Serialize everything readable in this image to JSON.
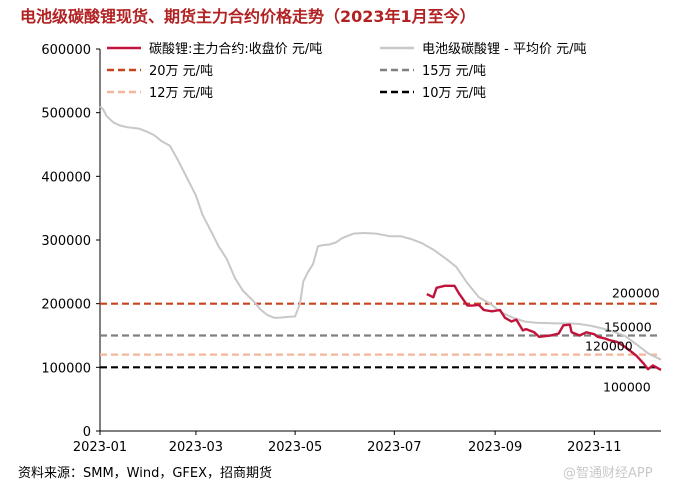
{
  "title": "电池级碳酸锂现货、期货主力合约价格走势（2023年1月至今）",
  "source": "资料来源：SMM，Wind，GFEX，招商期货",
  "watermark": "@智通财经APP",
  "chart_data": {
    "type": "line",
    "title": "电池级碳酸锂现货、期货主力合约价格走势（2023年1月至今）",
    "xlabel": "",
    "ylabel": "",
    "xlim": [
      "2023-01-01",
      "2023-12-12"
    ],
    "ylim": [
      0,
      600000
    ],
    "yticks": [
      0,
      100000,
      200000,
      300000,
      400000,
      500000,
      600000
    ],
    "xticks": [
      "2023-01",
      "2023-03",
      "2023-05",
      "2023-07",
      "2023-09",
      "2023-11"
    ],
    "grid": false,
    "legend_position": "top",
    "series": [
      {
        "name": "碳酸锂:主力合约:收盘价 元/吨",
        "color": "#c0143c",
        "x": [
          "2023-07-21",
          "2023-07-25",
          "2023-07-27",
          "2023-08-01",
          "2023-08-07",
          "2023-08-10",
          "2023-08-15",
          "2023-08-18",
          "2023-08-22",
          "2023-08-25",
          "2023-08-30",
          "2023-09-04",
          "2023-09-07",
          "2023-09-11",
          "2023-09-14",
          "2023-09-18",
          "2023-09-20",
          "2023-09-25",
          "2023-09-28",
          "2023-10-05",
          "2023-10-10",
          "2023-10-13",
          "2023-10-17",
          "2023-10-18",
          "2023-10-23",
          "2023-10-27",
          "2023-11-01",
          "2023-11-03",
          "2023-11-08",
          "2023-11-10",
          "2023-11-15",
          "2023-11-20",
          "2023-11-22",
          "2023-11-27",
          "2023-12-01",
          "2023-12-04",
          "2023-12-07",
          "2023-12-12"
        ],
        "y": [
          215000,
          210000,
          225000,
          228000,
          228000,
          215000,
          197000,
          197000,
          198000,
          190000,
          188000,
          190000,
          178000,
          172000,
          175000,
          158000,
          160000,
          155000,
          148000,
          150000,
          153000,
          166000,
          167000,
          155000,
          150000,
          155000,
          152000,
          148000,
          145000,
          143000,
          140000,
          132000,
          128000,
          118000,
          107000,
          97000,
          103000,
          96000
        ]
      },
      {
        "name": "电池级碳酸锂 - 平均价 元/吨",
        "color": "#c8c8c8",
        "x": [
          "2023-01-01",
          "2023-01-03",
          "2023-01-05",
          "2023-01-09",
          "2023-01-13",
          "2023-01-18",
          "2023-01-25",
          "2023-01-30",
          "2023-02-03",
          "2023-02-08",
          "2023-02-13",
          "2023-02-18",
          "2023-02-24",
          "2023-03-01",
          "2023-03-05",
          "2023-03-10",
          "2023-03-15",
          "2023-03-20",
          "2023-03-25",
          "2023-03-30",
          "2023-04-05",
          "2023-04-10",
          "2023-04-14",
          "2023-04-18",
          "2023-04-21",
          "2023-04-26",
          "2023-05-01",
          "2023-05-04",
          "2023-05-06",
          "2023-05-09",
          "2023-05-12",
          "2023-05-15",
          "2023-05-18",
          "2023-05-22",
          "2023-05-26",
          "2023-05-30",
          "2023-06-06",
          "2023-06-12",
          "2023-06-20",
          "2023-06-28",
          "2023-07-05",
          "2023-07-12",
          "2023-07-18",
          "2023-07-25",
          "2023-08-01",
          "2023-08-08",
          "2023-08-15",
          "2023-08-22",
          "2023-08-29",
          "2023-09-05",
          "2023-09-12",
          "2023-09-19",
          "2023-09-26",
          "2023-10-09",
          "2023-10-16",
          "2023-10-23",
          "2023-10-30",
          "2023-11-06",
          "2023-11-13",
          "2023-11-20",
          "2023-11-27",
          "2023-12-04",
          "2023-12-12"
        ],
        "y": [
          510000,
          505000,
          495000,
          485000,
          480000,
          477000,
          475000,
          470000,
          465000,
          455000,
          448000,
          425000,
          395000,
          370000,
          340000,
          315000,
          290000,
          270000,
          240000,
          220000,
          205000,
          190000,
          182000,
          178000,
          178000,
          179000,
          180000,
          200000,
          235000,
          250000,
          262000,
          290000,
          292000,
          293000,
          296000,
          303000,
          310000,
          311000,
          310000,
          306000,
          306000,
          301000,
          295000,
          285000,
          272000,
          258000,
          232000,
          210000,
          200000,
          186000,
          178000,
          172000,
          170000,
          169000,
          169000,
          168000,
          165000,
          161000,
          156000,
          149000,
          136000,
          122000,
          112000
        ]
      }
    ],
    "reference_lines": [
      {
        "name": "20万 元/吨",
        "y": 200000,
        "color": "#c8441e",
        "label": "200000"
      },
      {
        "name": "15万 元/吨",
        "y": 150000,
        "color": "#808080",
        "label": "150000"
      },
      {
        "name": "12万 元/吨",
        "y": 120000,
        "color": "#f4b69a",
        "label": "120000"
      },
      {
        "name": "10万 元/吨",
        "y": 100000,
        "color": "#000000",
        "label": "100000"
      }
    ]
  }
}
